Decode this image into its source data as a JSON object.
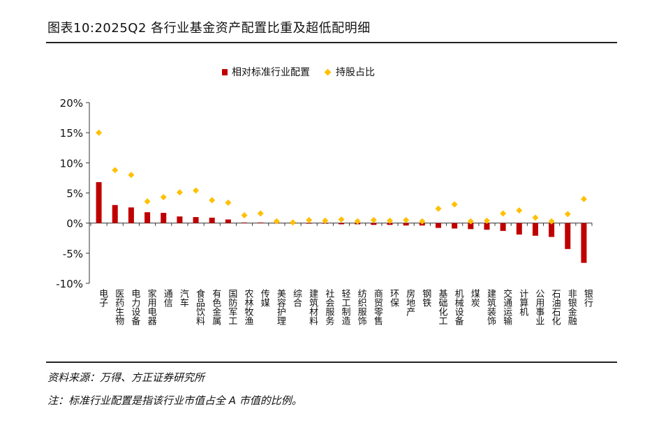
{
  "title": "图表10:2025Q2 各行业基金资产配置比重及超低配明细",
  "footnotes": {
    "source": "资料来源：万得、方正证券研究所",
    "note": "注：标准行业配置是指该行业市值占全 A 市值的比例。"
  },
  "colors": {
    "bar": "#c00000",
    "diamond": "#ffc000"
  },
  "chart_data": {
    "type": "bar",
    "categories": [
      "电子",
      "医药生物",
      "电力设备",
      "家用电器",
      "通信",
      "汽车",
      "食品饮料",
      "有色金属",
      "国防军工",
      "农林牧渔",
      "传媒",
      "美容护理",
      "综合",
      "建筑材料",
      "社会服务",
      "轻工制造",
      "纺织服饰",
      "商贸零售",
      "环保",
      "房地产",
      "钢铁",
      "基础化工",
      "机械设备",
      "煤炭",
      "建筑装饰",
      "交通运输",
      "计算机",
      "公用事业",
      "石油石化",
      "非银金融",
      "银行"
    ],
    "series": [
      {
        "name": "相对标准行业配置",
        "type": "bar",
        "values": [
          6.8,
          3.0,
          2.6,
          1.8,
          1.7,
          1.1,
          1.0,
          0.9,
          0.6,
          0.1,
          0.1,
          0.0,
          -0.1,
          -0.1,
          -0.1,
          -0.2,
          -0.2,
          -0.3,
          -0.3,
          -0.4,
          -0.4,
          -0.8,
          -0.9,
          -1.0,
          -1.1,
          -1.3,
          -1.9,
          -2.1,
          -2.3,
          -4.3,
          -6.6
        ]
      },
      {
        "name": "持股占比",
        "type": "scatter",
        "values": [
          15.0,
          8.8,
          8.0,
          3.6,
          4.3,
          5.1,
          5.4,
          3.8,
          3.4,
          1.3,
          1.6,
          0.3,
          0.1,
          0.5,
          0.4,
          0.6,
          0.3,
          0.5,
          0.4,
          0.5,
          0.3,
          2.4,
          3.1,
          0.3,
          0.4,
          1.6,
          2.1,
          0.9,
          0.3,
          1.5,
          4.0
        ]
      }
    ],
    "ylim": [
      -10,
      20
    ],
    "yticks": [
      -10,
      -5,
      0,
      5,
      10,
      15,
      20
    ],
    "ytick_labels": [
      "-10%",
      "-5%",
      "0%",
      "5%",
      "10%",
      "15%",
      "20%"
    ],
    "legend_position": "top"
  }
}
